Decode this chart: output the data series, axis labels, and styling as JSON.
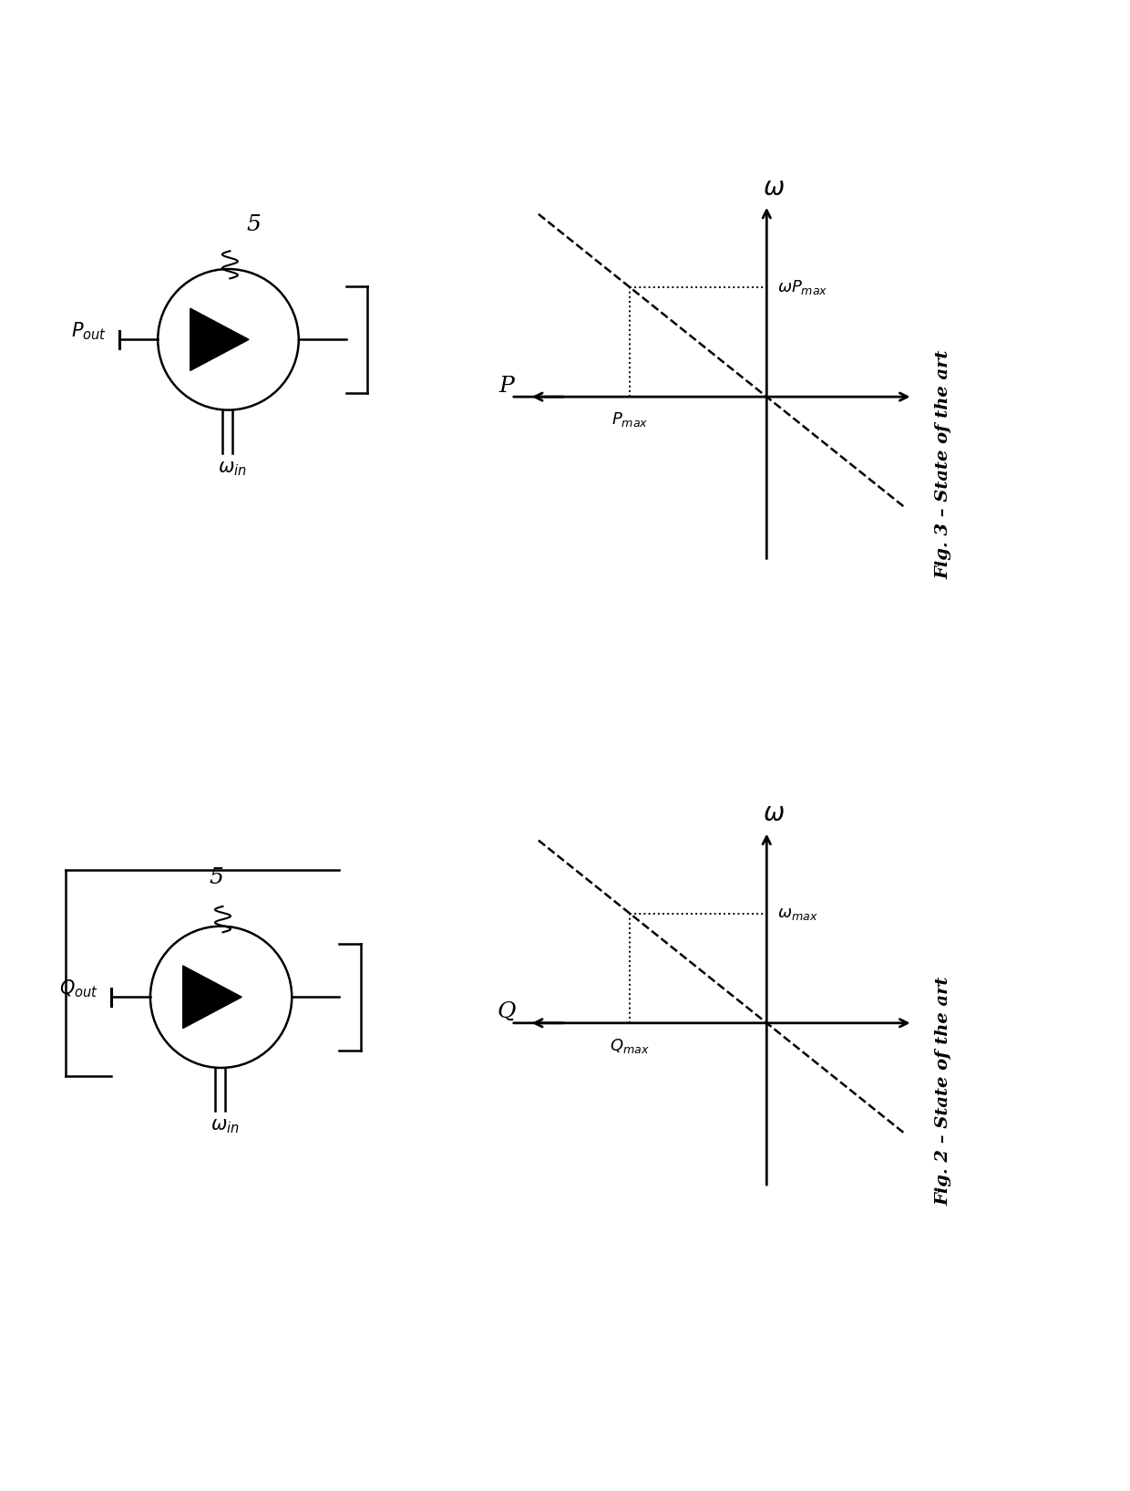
{
  "fig_width": 12.4,
  "fig_height": 16.35,
  "bg_color": "#ffffff",
  "fig2_title": "Fig. 2 – State of the art",
  "fig3_title": "Fig. 3 – State of the art",
  "pump_number": "5",
  "fig2_out_label": "$Q_{out}$",
  "fig3_out_label": "$P_{out}$",
  "win_label": "$\\omega_{in}$",
  "fig2_x_label": "Q",
  "fig2_x_max_label": "$Q_{max}$",
  "fig2_y_label": "$\\omega$",
  "fig2_y_max_label": "$\\omega_{max}$",
  "fig3_x_label": "P",
  "fig3_x_max_label": "$P_{max}$",
  "fig3_y_label": "$\\omega$",
  "fig3_y_max_label": "$\\omega P_{max}$"
}
